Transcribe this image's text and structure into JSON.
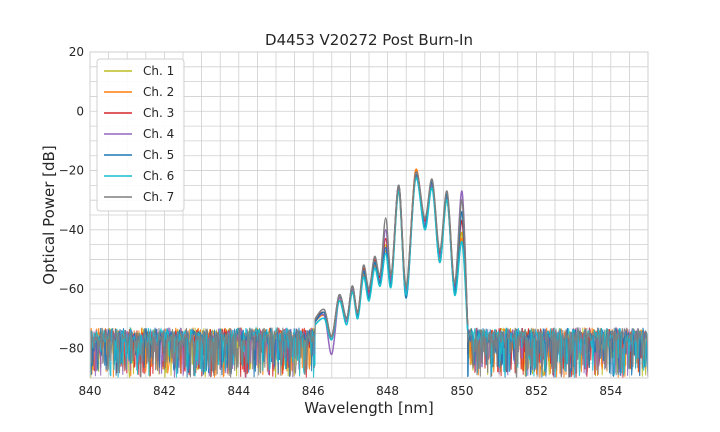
{
  "chart_data": {
    "type": "line",
    "title": "D4453 V20272 Post Burn-In",
    "xlabel": "Wavelength [nm]",
    "ylabel": "Optical Power [dB]",
    "xlim": [
      840,
      855
    ],
    "ylim": [
      -90,
      20
    ],
    "xticks": [
      840,
      842,
      844,
      846,
      848,
      850,
      852,
      854
    ],
    "yticks": [
      -80,
      -60,
      -40,
      -20,
      0,
      20
    ],
    "grid": true,
    "legend_position": "upper-left",
    "noise_floor_db": -75,
    "noise_band_db": [
      -90,
      -73
    ],
    "series": [
      {
        "name": "Ch. 1",
        "color": "#bcbd22",
        "x": [
          846.05,
          846.3,
          846.5,
          846.7,
          846.9,
          847.05,
          847.2,
          847.35,
          847.5,
          847.65,
          847.8,
          847.95,
          848.1,
          848.3,
          848.5,
          848.75,
          849.0,
          849.2,
          849.4,
          849.6,
          849.8,
          850.0,
          850.15
        ],
        "y": [
          -71,
          -68,
          -76,
          -63,
          -70,
          -60,
          -68,
          -54,
          -62,
          -51,
          -57,
          -45,
          -57,
          -26,
          -60,
          -22,
          -38,
          -24,
          -49,
          -29,
          -60,
          -41,
          -72
        ]
      },
      {
        "name": "Ch. 2",
        "color": "#ff7f0e",
        "x": [
          846.05,
          846.3,
          846.5,
          846.7,
          846.9,
          847.05,
          847.2,
          847.35,
          847.5,
          847.65,
          847.8,
          847.95,
          848.1,
          848.3,
          848.5,
          848.75,
          849.0,
          849.2,
          849.4,
          849.6,
          849.8,
          850.0,
          850.15
        ],
        "y": [
          -71,
          -69,
          -77,
          -63,
          -71,
          -60,
          -69,
          -55,
          -63,
          -52,
          -58,
          -47,
          -58,
          -27,
          -62,
          -20,
          -39,
          -25,
          -50,
          -30,
          -61,
          -43,
          -73
        ]
      },
      {
        "name": "Ch. 3",
        "color": "#d62728",
        "x": [
          846.05,
          846.3,
          846.5,
          846.7,
          846.9,
          847.05,
          847.2,
          847.35,
          847.5,
          847.65,
          847.8,
          847.95,
          848.1,
          848.3,
          848.5,
          848.75,
          849.0,
          849.2,
          849.4,
          849.6,
          849.8,
          850.0,
          850.15
        ],
        "y": [
          -70,
          -68,
          -76,
          -62,
          -70,
          -59,
          -68,
          -53,
          -61,
          -50,
          -56,
          -43,
          -56,
          -25,
          -60,
          -21,
          -37,
          -24,
          -48,
          -28,
          -59,
          -37,
          -72
        ]
      },
      {
        "name": "Ch. 4",
        "color": "#9467bd",
        "x": [
          846.05,
          846.3,
          846.5,
          846.7,
          846.9,
          847.05,
          847.2,
          847.35,
          847.5,
          847.65,
          847.8,
          847.95,
          848.1,
          848.3,
          848.5,
          848.75,
          849.0,
          849.2,
          849.4,
          849.6,
          849.8,
          850.0,
          850.15
        ],
        "y": [
          -71,
          -69,
          -82,
          -63,
          -71,
          -60,
          -69,
          -54,
          -62,
          -51,
          -57,
          -40,
          -57,
          -26,
          -61,
          -22,
          -38,
          -25,
          -49,
          -29,
          -60,
          -27,
          -73
        ]
      },
      {
        "name": "Ch. 5",
        "color": "#1f77b4",
        "x": [
          846.05,
          846.3,
          846.5,
          846.7,
          846.9,
          847.05,
          847.2,
          847.35,
          847.5,
          847.65,
          847.8,
          847.95,
          848.1,
          848.3,
          848.5,
          848.75,
          849.0,
          849.2,
          849.4,
          849.6,
          849.8,
          850.0,
          850.15
        ],
        "y": [
          -71,
          -68,
          -77,
          -62,
          -70,
          -59,
          -69,
          -54,
          -63,
          -51,
          -58,
          -46,
          -58,
          -25,
          -63,
          -22,
          -39,
          -24,
          -51,
          -28,
          -61,
          -34,
          -73
        ]
      },
      {
        "name": "Ch. 6",
        "color": "#17becf",
        "x": [
          846.05,
          846.3,
          846.5,
          846.7,
          846.9,
          847.05,
          847.2,
          847.35,
          847.5,
          847.65,
          847.8,
          847.95,
          848.1,
          848.3,
          848.5,
          848.75,
          849.0,
          849.2,
          849.4,
          849.6,
          849.8,
          850.0,
          850.15
        ],
        "y": [
          -72,
          -70,
          -77,
          -64,
          -72,
          -61,
          -70,
          -56,
          -64,
          -53,
          -59,
          -48,
          -59,
          -27,
          -62,
          -23,
          -40,
          -26,
          -51,
          -30,
          -62,
          -44,
          -74
        ]
      },
      {
        "name": "Ch. 7",
        "color": "#7f7f7f",
        "x": [
          846.05,
          846.3,
          846.5,
          846.7,
          846.9,
          847.05,
          847.2,
          847.35,
          847.5,
          847.65,
          847.8,
          847.95,
          848.1,
          848.3,
          848.5,
          848.75,
          849.0,
          849.2,
          849.4,
          849.6,
          849.8,
          850.0,
          850.15
        ],
        "y": [
          -70,
          -67,
          -76,
          -62,
          -70,
          -59,
          -68,
          -52,
          -60,
          -49,
          -55,
          -36,
          -55,
          -25,
          -59,
          -21,
          -36,
          -23,
          -47,
          -27,
          -58,
          -30,
          -72
        ]
      }
    ]
  }
}
